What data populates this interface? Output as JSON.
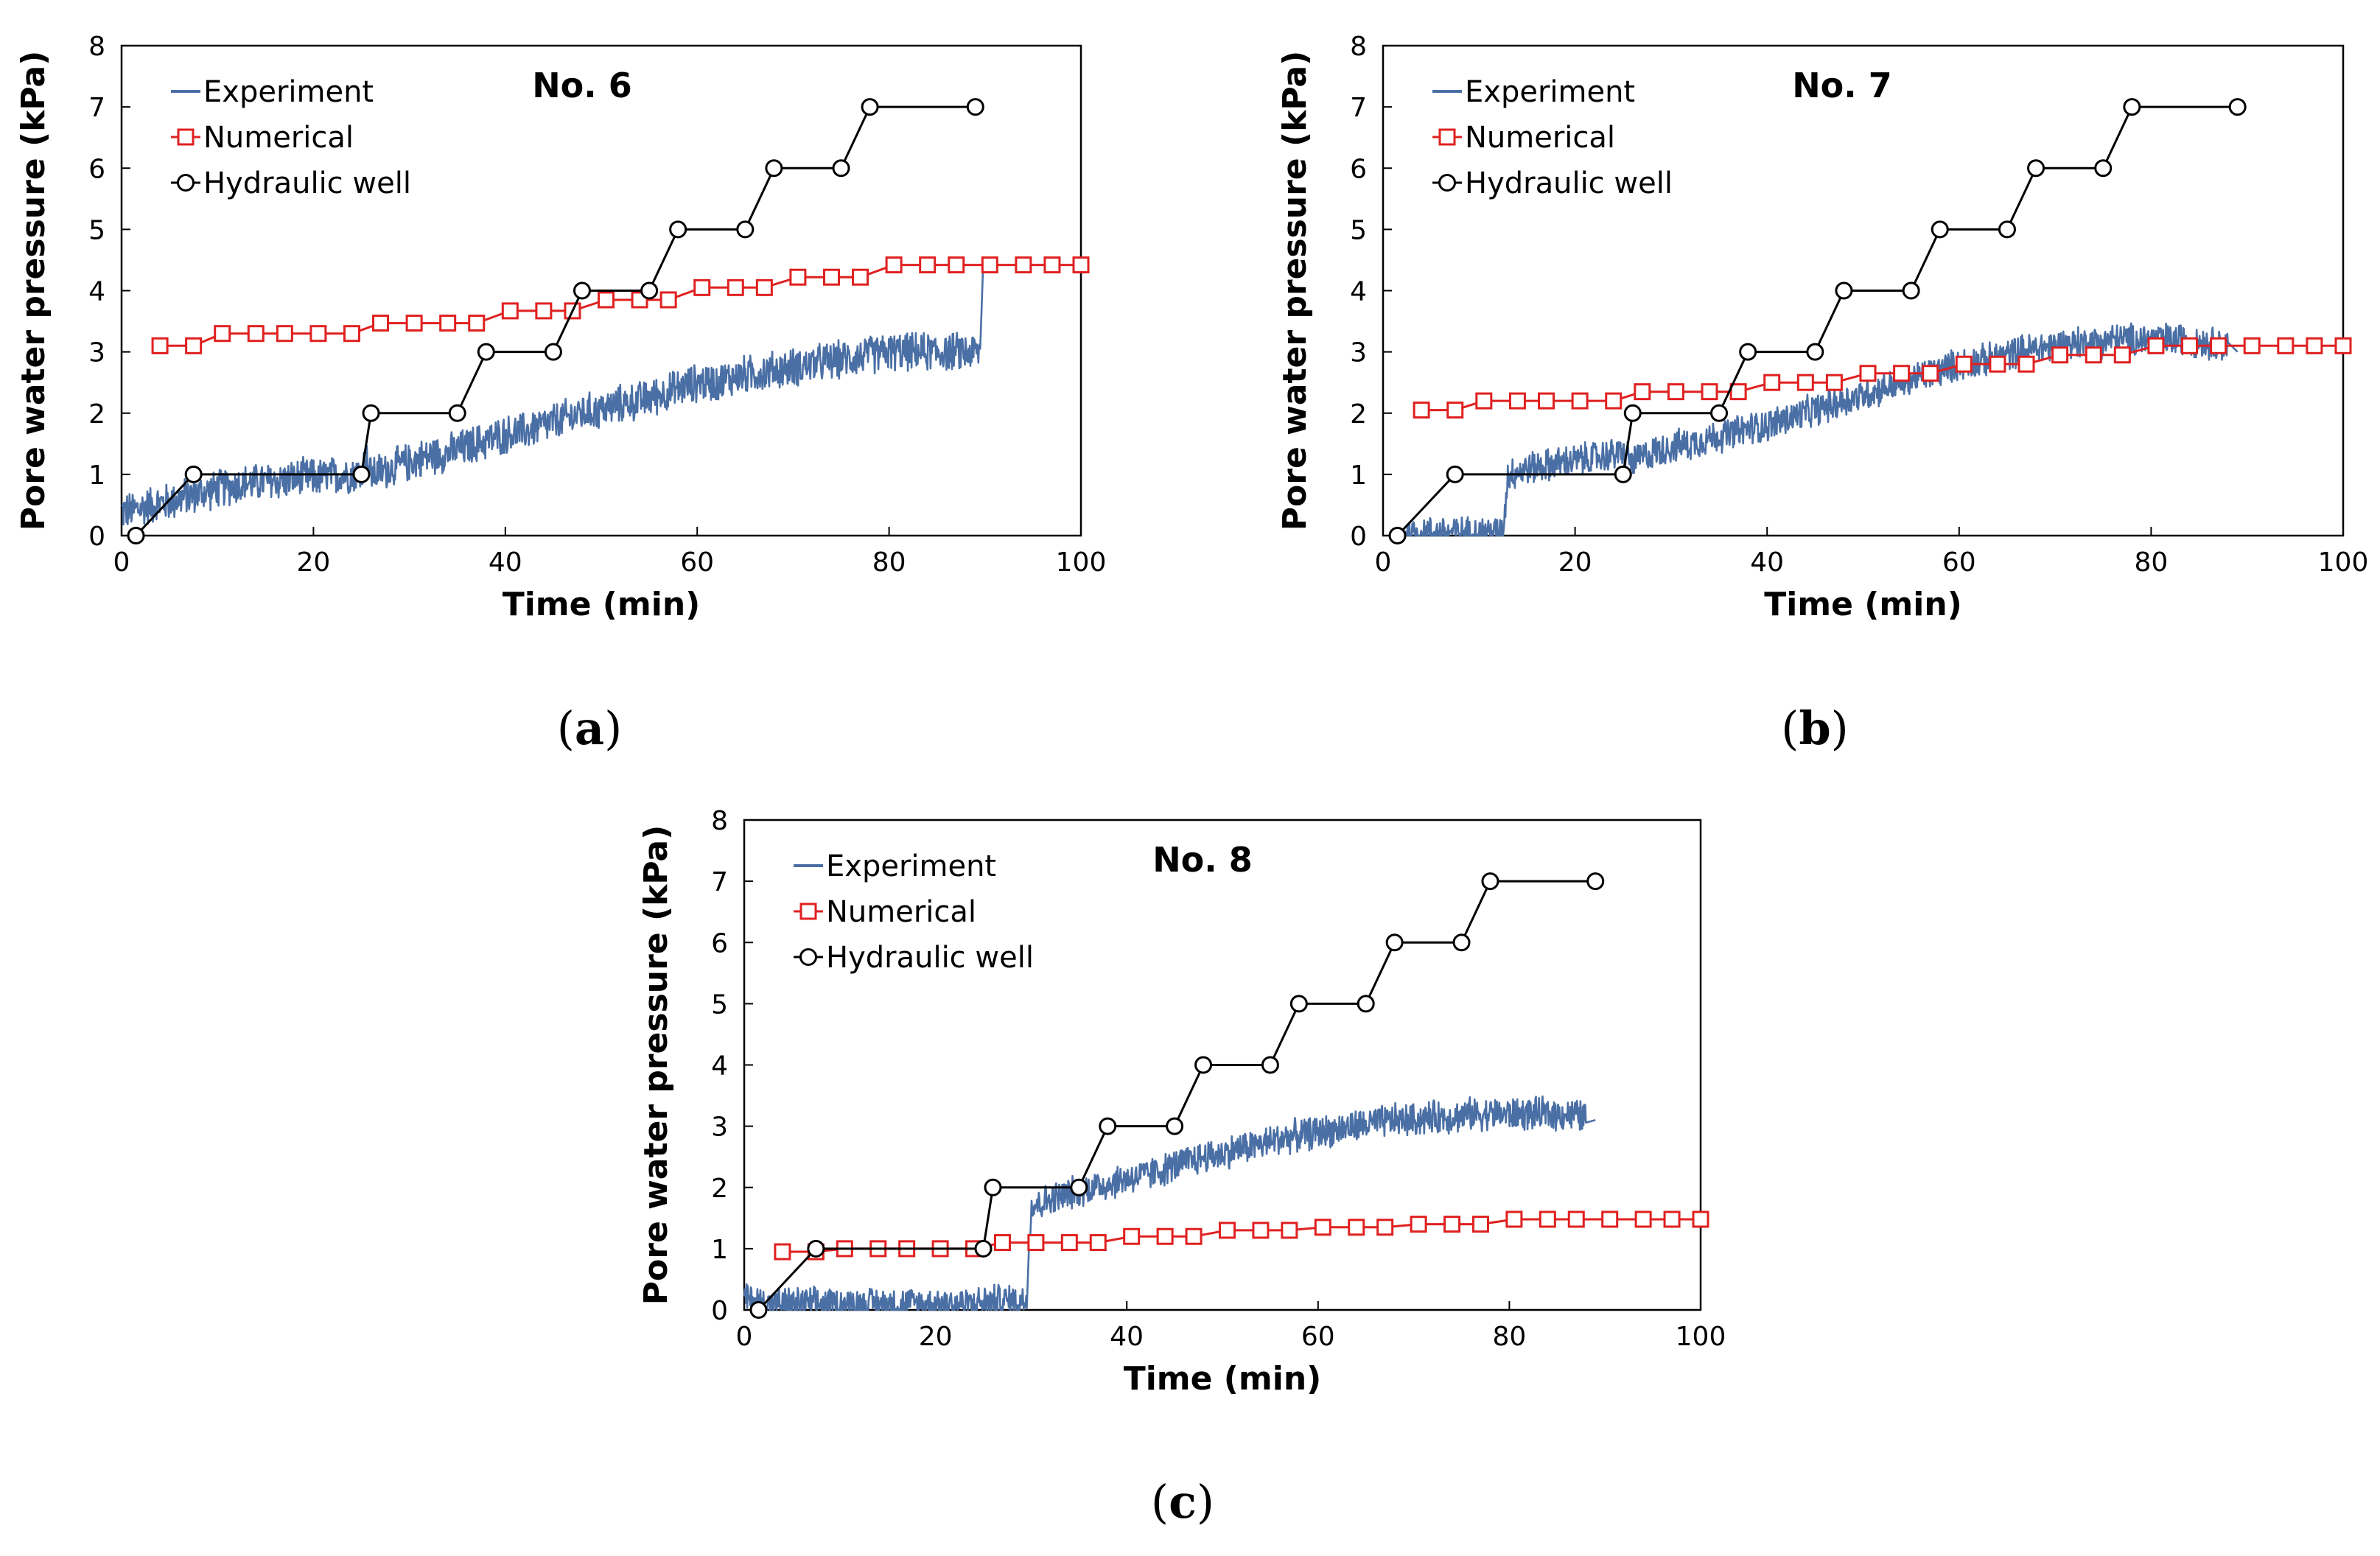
{
  "chart_data": [
    {
      "type": "line",
      "panel": "a",
      "caption_open": "(",
      "caption_letter": "a",
      "caption_close": ")",
      "title": "No. 6",
      "xlabel": "Time (min)",
      "ylabel": "Pore water pressure (kPa)",
      "xlim": [
        0,
        100
      ],
      "ylim": [
        0,
        8
      ],
      "xticks": [
        "0",
        "20",
        "40",
        "60",
        "80",
        "100"
      ],
      "yticks": [
        "0",
        "1",
        "2",
        "3",
        "4",
        "5",
        "6",
        "7",
        "8"
      ],
      "grid": false,
      "legend_position": "top-left",
      "series": [
        {
          "name": "Experiment",
          "style": "noisy-line",
          "color": "#4a6fa5",
          "x": [
            0,
            1,
            3,
            5,
            7,
            9,
            11,
            13,
            15,
            17,
            19,
            21,
            23,
            25,
            25.5,
            26,
            28,
            30,
            32,
            34,
            36,
            38,
            40,
            42,
            44,
            46,
            48,
            50,
            52,
            54,
            56,
            58,
            60,
            62,
            64,
            66,
            68,
            70,
            72,
            74,
            76,
            78,
            80,
            82,
            84,
            86,
            88,
            89.5,
            89.8
          ],
          "y": [
            0.4,
            0.4,
            0.5,
            0.55,
            0.65,
            0.72,
            0.8,
            0.85,
            0.88,
            0.9,
            0.95,
            0.95,
            1.0,
            1.02,
            1.3,
            1.0,
            1.1,
            1.2,
            1.3,
            1.35,
            1.45,
            1.55,
            1.65,
            1.7,
            1.8,
            1.9,
            2.0,
            2.05,
            2.15,
            2.2,
            2.3,
            2.4,
            2.5,
            2.5,
            2.6,
            2.65,
            2.7,
            2.75,
            2.8,
            2.85,
            2.9,
            2.95,
            3.0,
            3.0,
            3.0,
            3.0,
            3.0,
            3.0,
            4.4
          ],
          "noise_amplitude": 0.35
        },
        {
          "name": "Numerical",
          "style": "line-square",
          "color": "#e02020",
          "x": [
            4,
            7.5,
            10.5,
            14,
            17,
            20.5,
            24,
            27,
            30.5,
            34,
            37,
            40.5,
            44,
            47,
            50.5,
            54,
            57,
            60.5,
            64,
            67,
            70.5,
            74,
            77,
            80.5,
            84,
            87,
            90.5,
            94,
            97,
            100
          ],
          "y": [
            3.1,
            3.1,
            3.3,
            3.3,
            3.3,
            3.3,
            3.3,
            3.47,
            3.47,
            3.47,
            3.47,
            3.67,
            3.67,
            3.67,
            3.85,
            3.85,
            3.85,
            4.05,
            4.05,
            4.05,
            4.22,
            4.22,
            4.22,
            4.42,
            4.42,
            4.42,
            4.42,
            4.42,
            4.42,
            4.42
          ]
        },
        {
          "name": "Hydraulic well",
          "style": "line-circle",
          "color": "#000000",
          "x": [
            1.5,
            7.5,
            25,
            26,
            35,
            38,
            45,
            48,
            55,
            58,
            65,
            68,
            75,
            78,
            89
          ],
          "y": [
            0,
            1,
            1,
            2,
            2,
            3,
            3,
            4,
            4,
            5,
            5,
            6,
            6,
            7,
            7
          ]
        }
      ]
    },
    {
      "type": "line",
      "panel": "b",
      "caption_open": "(",
      "caption_letter": "b",
      "caption_close": ")",
      "title": "No. 7",
      "xlabel": "Time (min)",
      "ylabel": "Pore water pressure (kPa)",
      "xlim": [
        0,
        100
      ],
      "ylim": [
        0,
        8
      ],
      "xticks": [
        "0",
        "20",
        "40",
        "60",
        "80",
        "100"
      ],
      "yticks": [
        "0",
        "1",
        "2",
        "3",
        "4",
        "5",
        "6",
        "7",
        "8"
      ],
      "grid": false,
      "legend_position": "top-left",
      "series": [
        {
          "name": "Experiment",
          "style": "noisy-line",
          "color": "#4a6fa5",
          "x": [
            2,
            4,
            6,
            8,
            10,
            12,
            12.5,
            13,
            15,
            17,
            19,
            21,
            23,
            25,
            26,
            28,
            30,
            32,
            34,
            36,
            38,
            40,
            42,
            44,
            46,
            48,
            50,
            52,
            54,
            56,
            58,
            60,
            62,
            64,
            66,
            68,
            70,
            72,
            74,
            76,
            78,
            80,
            82,
            84,
            86,
            88,
            89
          ],
          "y": [
            0,
            0.05,
            0.05,
            0.05,
            0.05,
            0.05,
            0.05,
            1.0,
            1.1,
            1.15,
            1.2,
            1.25,
            1.3,
            1.35,
            1.2,
            1.35,
            1.45,
            1.5,
            1.6,
            1.65,
            1.75,
            1.8,
            1.9,
            2.0,
            2.1,
            2.2,
            2.3,
            2.4,
            2.5,
            2.6,
            2.7,
            2.8,
            2.85,
            2.9,
            3.0,
            3.05,
            3.1,
            3.15,
            3.15,
            3.2,
            3.2,
            3.2,
            3.2,
            3.2,
            3.15,
            3.1,
            3.0
          ],
          "noise_amplitude": 0.3
        },
        {
          "name": "Numerical",
          "style": "line-square",
          "color": "#e02020",
          "x": [
            4,
            7.5,
            10.5,
            14,
            17,
            20.5,
            24,
            27,
            30.5,
            34,
            37,
            40.5,
            44,
            47,
            50.5,
            54,
            57,
            60.5,
            64,
            67,
            70.5,
            74,
            77,
            80.5,
            84,
            87,
            90.5,
            94,
            97,
            100
          ],
          "y": [
            2.05,
            2.05,
            2.2,
            2.2,
            2.2,
            2.2,
            2.2,
            2.35,
            2.35,
            2.35,
            2.35,
            2.5,
            2.5,
            2.5,
            2.65,
            2.65,
            2.65,
            2.8,
            2.8,
            2.8,
            2.95,
            2.95,
            2.95,
            3.1,
            3.1,
            3.1,
            3.1,
            3.1,
            3.1,
            3.1
          ]
        },
        {
          "name": "Hydraulic well",
          "style": "line-circle",
          "color": "#000000",
          "x": [
            1.5,
            7.5,
            25,
            26,
            35,
            38,
            45,
            48,
            55,
            58,
            65,
            68,
            75,
            78,
            89
          ],
          "y": [
            0,
            1,
            1,
            2,
            2,
            3,
            3,
            4,
            4,
            5,
            5,
            6,
            6,
            7,
            7
          ]
        }
      ]
    },
    {
      "type": "line",
      "panel": "c",
      "caption_open": "(",
      "caption_letter": "c",
      "caption_close": ")",
      "title": "No. 8",
      "xlabel": "Time (min)",
      "ylabel": "Pore water pressure (kPa)",
      "xlim": [
        0,
        100
      ],
      "ylim": [
        0,
        8
      ],
      "xticks": [
        "0",
        "20",
        "40",
        "60",
        "80",
        "100"
      ],
      "yticks": [
        "0",
        "1",
        "2",
        "3",
        "4",
        "5",
        "6",
        "7",
        "8"
      ],
      "grid": false,
      "legend_position": "top-left",
      "series": [
        {
          "name": "Experiment",
          "style": "noisy-line",
          "color": "#4a6fa5",
          "x": [
            0,
            2,
            4,
            6,
            8,
            10,
            12,
            14,
            16,
            18,
            20,
            22,
            24,
            26,
            28,
            29.5,
            30,
            32,
            34,
            36,
            38,
            40,
            42,
            44,
            46,
            48,
            50,
            52,
            54,
            56,
            58,
            60,
            62,
            64,
            66,
            68,
            70,
            72,
            74,
            76,
            78,
            80,
            82,
            84,
            86,
            88,
            89
          ],
          "y": [
            0.2,
            0.1,
            0.1,
            0.1,
            0.1,
            0.1,
            0.1,
            0.1,
            0.1,
            0.1,
            0.1,
            0.1,
            0.1,
            0.15,
            0.15,
            0.15,
            1.7,
            1.8,
            1.9,
            2.0,
            2.05,
            2.15,
            2.2,
            2.3,
            2.4,
            2.5,
            2.55,
            2.65,
            2.7,
            2.8,
            2.85,
            2.9,
            2.95,
            3.0,
            3.05,
            3.1,
            3.1,
            3.15,
            3.15,
            3.2,
            3.2,
            3.2,
            3.2,
            3.2,
            3.2,
            3.15,
            3.1
          ],
          "noise_amplitude": 0.3
        },
        {
          "name": "Numerical",
          "style": "line-square",
          "color": "#e02020",
          "x": [
            4,
            7.5,
            10.5,
            14,
            17,
            20.5,
            24,
            27,
            30.5,
            34,
            37,
            40.5,
            44,
            47,
            50.5,
            54,
            57,
            60.5,
            64,
            67,
            70.5,
            74,
            77,
            80.5,
            84,
            87,
            90.5,
            94,
            97,
            100
          ],
          "y": [
            0.95,
            0.95,
            1.0,
            1.0,
            1.0,
            1.0,
            1.0,
            1.1,
            1.1,
            1.1,
            1.1,
            1.2,
            1.2,
            1.2,
            1.3,
            1.3,
            1.3,
            1.35,
            1.35,
            1.35,
            1.4,
            1.4,
            1.4,
            1.48,
            1.48,
            1.48,
            1.48,
            1.48,
            1.48,
            1.48
          ]
        },
        {
          "name": "Hydraulic well",
          "style": "line-circle",
          "color": "#000000",
          "x": [
            1.5,
            7.5,
            25,
            26,
            35,
            38,
            45,
            48,
            55,
            58,
            65,
            68,
            75,
            78,
            89
          ],
          "y": [
            0,
            1,
            1,
            2,
            2,
            3,
            3,
            4,
            4,
            5,
            5,
            6,
            6,
            7,
            7
          ]
        }
      ]
    }
  ]
}
